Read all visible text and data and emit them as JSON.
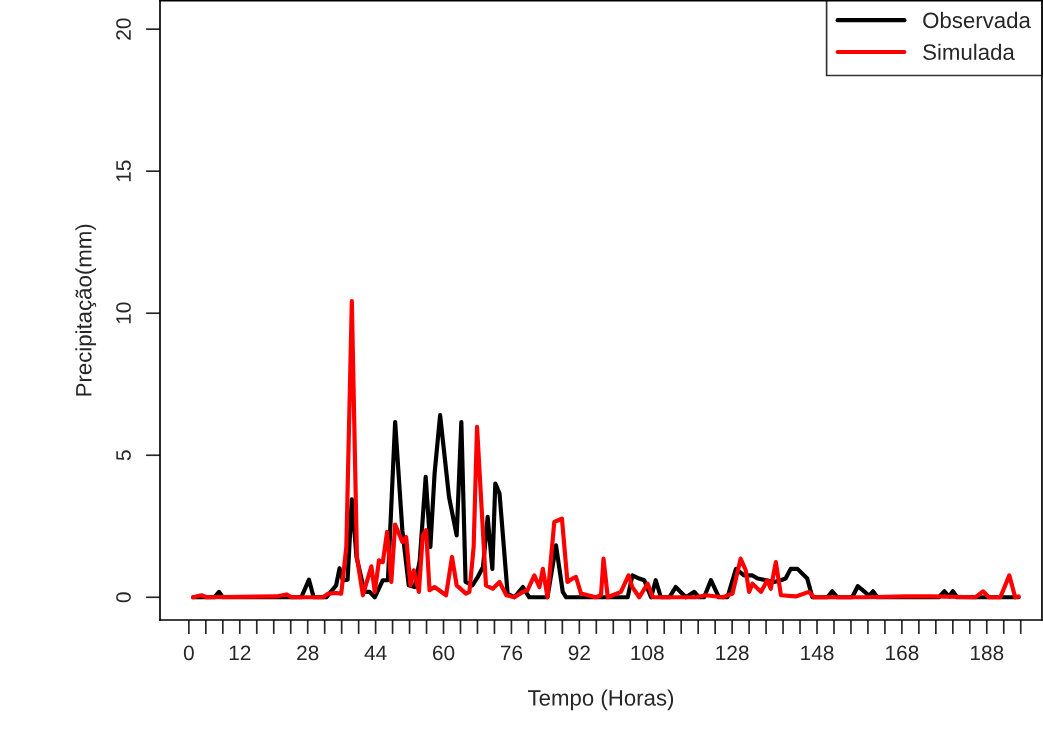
{
  "chart_data": {
    "type": "line",
    "xlabel": "Tempo (Horas)",
    "ylabel": "Precipitação(mm)",
    "xlim": [
      -6.8,
      201
    ],
    "ylim": [
      -0.8,
      21
    ],
    "xticks": [
      0,
      {
        "value": 4,
        "label": null
      },
      {
        "value": 8,
        "label": null
      },
      12,
      {
        "value": 16,
        "label": null
      },
      {
        "value": 20,
        "label": null
      },
      {
        "value": 24,
        "label": null
      },
      28,
      {
        "value": 32,
        "label": null
      },
      {
        "value": 36,
        "label": null
      },
      {
        "value": 40,
        "label": null
      },
      44,
      {
        "value": 48,
        "label": null
      },
      {
        "value": 52,
        "label": null
      },
      {
        "value": 56,
        "label": null
      },
      60,
      {
        "value": 64,
        "label": null
      },
      {
        "value": 68,
        "label": null
      },
      {
        "value": 72,
        "label": null
      },
      76,
      {
        "value": 80,
        "label": null
      },
      {
        "value": 84,
        "label": null
      },
      {
        "value": 88,
        "label": null
      },
      92,
      {
        "value": 96,
        "label": null
      },
      {
        "value": 100,
        "label": null
      },
      {
        "value": 104,
        "label": null
      },
      108,
      {
        "value": 112,
        "label": null
      },
      {
        "value": 116,
        "label": null
      },
      {
        "value": 120,
        "label": null
      },
      {
        "value": 124,
        "label": null
      },
      128,
      {
        "value": 132,
        "label": null
      },
      {
        "value": 136,
        "label": null
      },
      {
        "value": 140,
        "label": null
      },
      {
        "value": 144,
        "label": null
      },
      148,
      {
        "value": 152,
        "label": null
      },
      {
        "value": 156,
        "label": null
      },
      {
        "value": 160,
        "label": null
      },
      {
        "value": 164,
        "label": null
      },
      168,
      {
        "value": 172,
        "label": null
      },
      {
        "value": 176,
        "label": null
      },
      {
        "value": 180,
        "label": null
      },
      {
        "value": 184,
        "label": null
      },
      188,
      {
        "value": 192,
        "label": null
      },
      {
        "value": 196,
        "label": null
      }
    ],
    "yticks": [
      0,
      5,
      10,
      15,
      20
    ],
    "grid": false,
    "legend": "top right",
    "marker": "none",
    "line_style": "solid",
    "series": [
      {
        "name": "Observada",
        "color": "#000000",
        "x": [
          1,
          6,
          7.1,
          8,
          26.5,
          28.3,
          29.4,
          32.4,
          34.7,
          35.5,
          36.3,
          37.4,
          38.4,
          39.5,
          41.4,
          42.6,
          43.8,
          45.7,
          46.9,
          48.6,
          50.3,
          51.8,
          53.2,
          54.4,
          55.8,
          56.9,
          57.9,
          59.2,
          61.3,
          63.1,
          64.2,
          65.2,
          66.8,
          68.1,
          69.3,
          70.4,
          71.5,
          72.2,
          73.2,
          75.1,
          76.7,
          78.7,
          80.2,
          84.5,
          86.5,
          88.1,
          88.9,
          102.2,
          103.4,
          104.5,
          106.1,
          107.3,
          108.9,
          110.0,
          111.2,
          113.2,
          114.7,
          117.1,
          119.1,
          120.2,
          121.4,
          123.0,
          124.9,
          126.9,
          128.9,
          130.8,
          132.8,
          134.0,
          136.0,
          137.9,
          139.5,
          140.6,
          141.8,
          143.4,
          145.7,
          146.9,
          150.4,
          151.6,
          152.8,
          156.3,
          157.6,
          159.1,
          160.2,
          161.2,
          162.2,
          176.7,
          178.0,
          179.1,
          180.0,
          181.0,
          195.5
        ],
        "values": [
          0,
          0,
          0.19,
          0,
          0,
          0.62,
          0,
          0,
          0.42,
          1.02,
          0.59,
          0.62,
          3.45,
          1.42,
          0.19,
          0.19,
          0,
          0.6,
          0.6,
          6.17,
          2.36,
          0.42,
          0.36,
          1.3,
          4.24,
          1.77,
          4.37,
          6.41,
          3.53,
          2.18,
          6.17,
          0.54,
          0.42,
          0.72,
          1.07,
          2.83,
          1.0,
          4.0,
          3.65,
          0.13,
          0,
          0.36,
          0,
          0,
          1.83,
          0.19,
          0,
          0,
          0,
          0.77,
          0.66,
          0.6,
          0,
          0.6,
          0,
          0,
          0.36,
          0,
          0.19,
          0,
          0,
          0.6,
          0,
          0,
          1.0,
          0.77,
          0.77,
          0.66,
          0.6,
          0.54,
          0.6,
          0.66,
          1.0,
          1.0,
          0.66,
          0,
          0,
          0.21,
          0,
          0,
          0.39,
          0.21,
          0.05,
          0.21,
          0,
          0,
          0.21,
          0.03,
          0.21,
          0,
          0
        ]
      },
      {
        "name": "Simulada",
        "color": "#ff0000",
        "x": [
          1,
          3,
          4.2,
          20.6,
          23,
          24.2,
          31.6,
          32.8,
          34.7,
          35.9,
          37.1,
          38.4,
          39.6,
          41.0,
          43,
          43.8,
          44.8,
          45.7,
          46.7,
          47.7,
          48.6,
          50.3,
          51.2,
          52.2,
          53.0,
          54.2,
          55.1,
          55.9,
          56.7,
          57.9,
          60.6,
          62.0,
          63.1,
          65.3,
          66.1,
          67.1,
          67.9,
          70,
          71.6,
          73.2,
          74.8,
          76.7,
          78.7,
          79.8,
          81.4,
          82.6,
          83.4,
          84.5,
          86.1,
          87.9,
          89.2,
          90.4,
          91.2,
          92.4,
          95.9,
          97.1,
          97.7,
          98.7,
          101.8,
          103.6,
          104.5,
          106.1,
          108.1,
          109.3,
          119.5,
          121.8,
          125.8,
          128.1,
          130.0,
          131.2,
          132.0,
          132.8,
          134.8,
          136.3,
          137.1,
          138.3,
          139.5,
          143.0,
          146.1,
          147.3,
          159.5,
          168.9,
          175.1,
          185.3,
          187.1,
          188.5,
          191.2,
          193.3,
          194.7,
          195.5
        ],
        "values": [
          0,
          0.07,
          0,
          0.03,
          0.1,
          0,
          0,
          0.13,
          0.15,
          0.13,
          1.77,
          10.43,
          1.42,
          0.07,
          1.09,
          0.19,
          1.3,
          1.24,
          2.3,
          0.54,
          2.56,
          1.95,
          2.12,
          0.42,
          0.95,
          0.19,
          2.18,
          2.36,
          0.25,
          0.36,
          0.07,
          1.42,
          0.42,
          0.13,
          0.19,
          1.77,
          6.0,
          0.42,
          0.3,
          0.54,
          0.07,
          0,
          0.19,
          0.25,
          0.77,
          0.36,
          1.0,
          0,
          2.65,
          2.77,
          0.54,
          0.66,
          0.72,
          0.13,
          0,
          0.07,
          1.36,
          0,
          0.19,
          0.77,
          0.36,
          0,
          0.48,
          0,
          0,
          0.07,
          0,
          0.13,
          1.36,
          0.95,
          0.19,
          0.48,
          0.19,
          0.6,
          0.3,
          1.24,
          0.07,
          0.03,
          0.19,
          0,
          0,
          0.03,
          0.03,
          0,
          0.21,
          0,
          0,
          0.77,
          0,
          0.03
        ]
      }
    ]
  }
}
